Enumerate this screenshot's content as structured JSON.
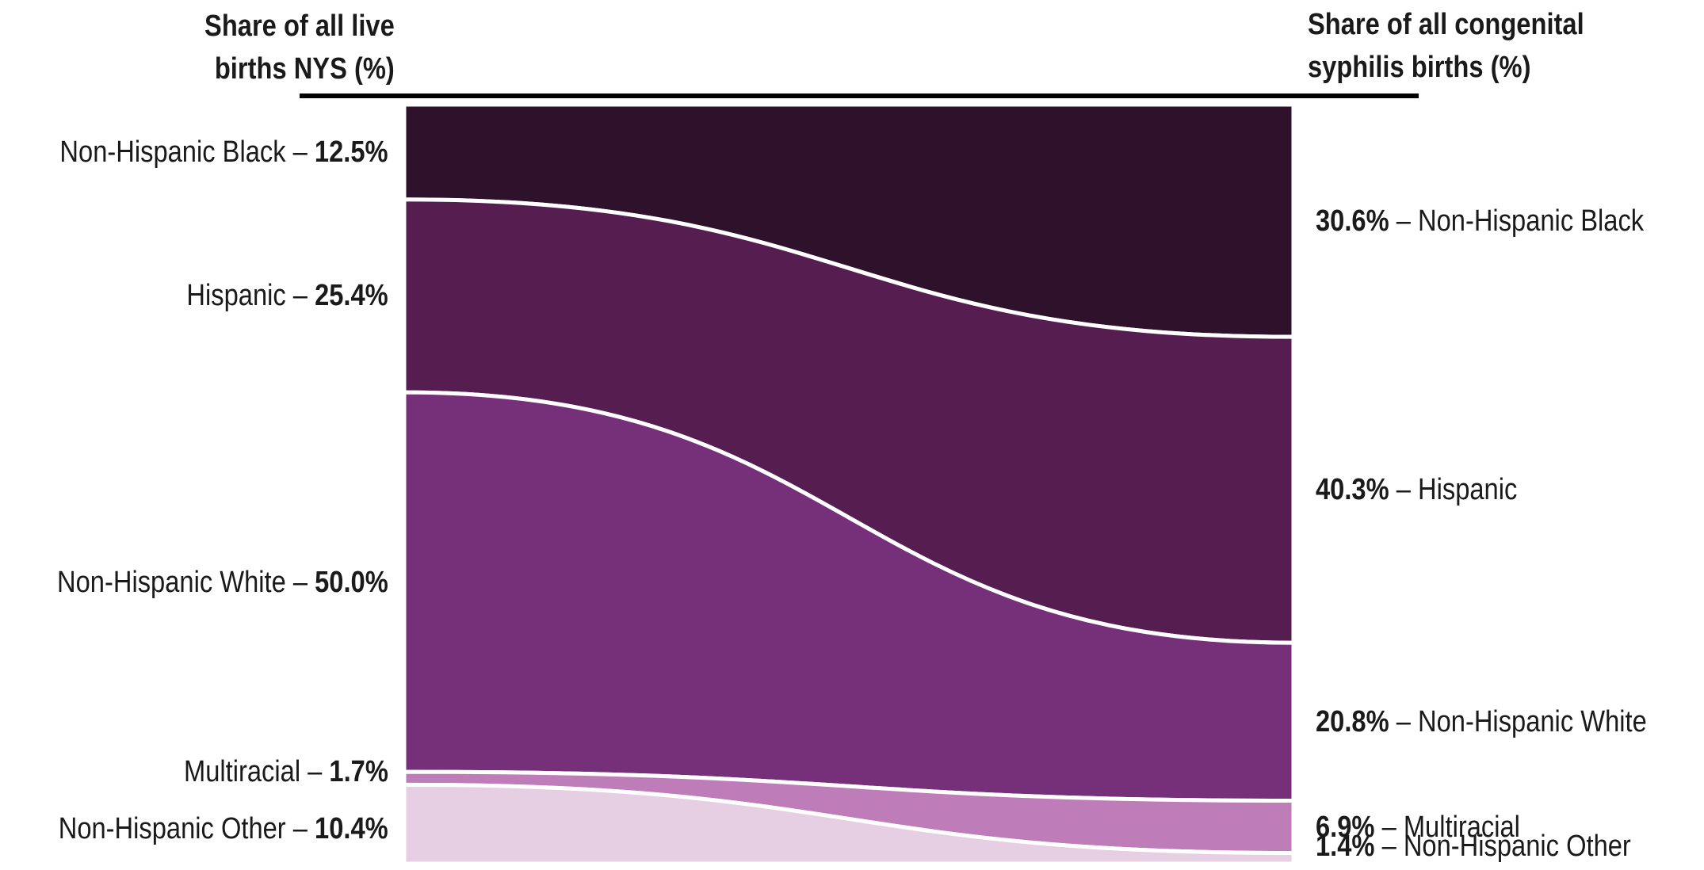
{
  "chart_data": {
    "type": "sankey",
    "left_axis_title": [
      "Share of all live",
      "births NYS (%)"
    ],
    "right_axis_title": [
      "Share of all congenital",
      "syphilis births (%)"
    ],
    "categories": [
      "Non-Hispanic Black",
      "Hispanic",
      "Non-Hispanic White",
      "Multiracial",
      "Non-Hispanic Other"
    ],
    "left_values": [
      12.5,
      25.4,
      50.0,
      1.7,
      10.4
    ],
    "right_values": [
      30.6,
      40.3,
      20.8,
      6.9,
      1.4
    ],
    "left_value_labels": [
      "12.5%",
      "25.4%",
      "50.0%",
      "1.7%",
      "10.4%"
    ],
    "right_value_labels": [
      "30.6%",
      "40.3%",
      "20.8%",
      "6.9%",
      "1.4%"
    ],
    "colors": [
      "#2e122b",
      "#561e50",
      "#76307a",
      "#be7cb8",
      "#e6cfe3"
    ],
    "separator": " – "
  }
}
